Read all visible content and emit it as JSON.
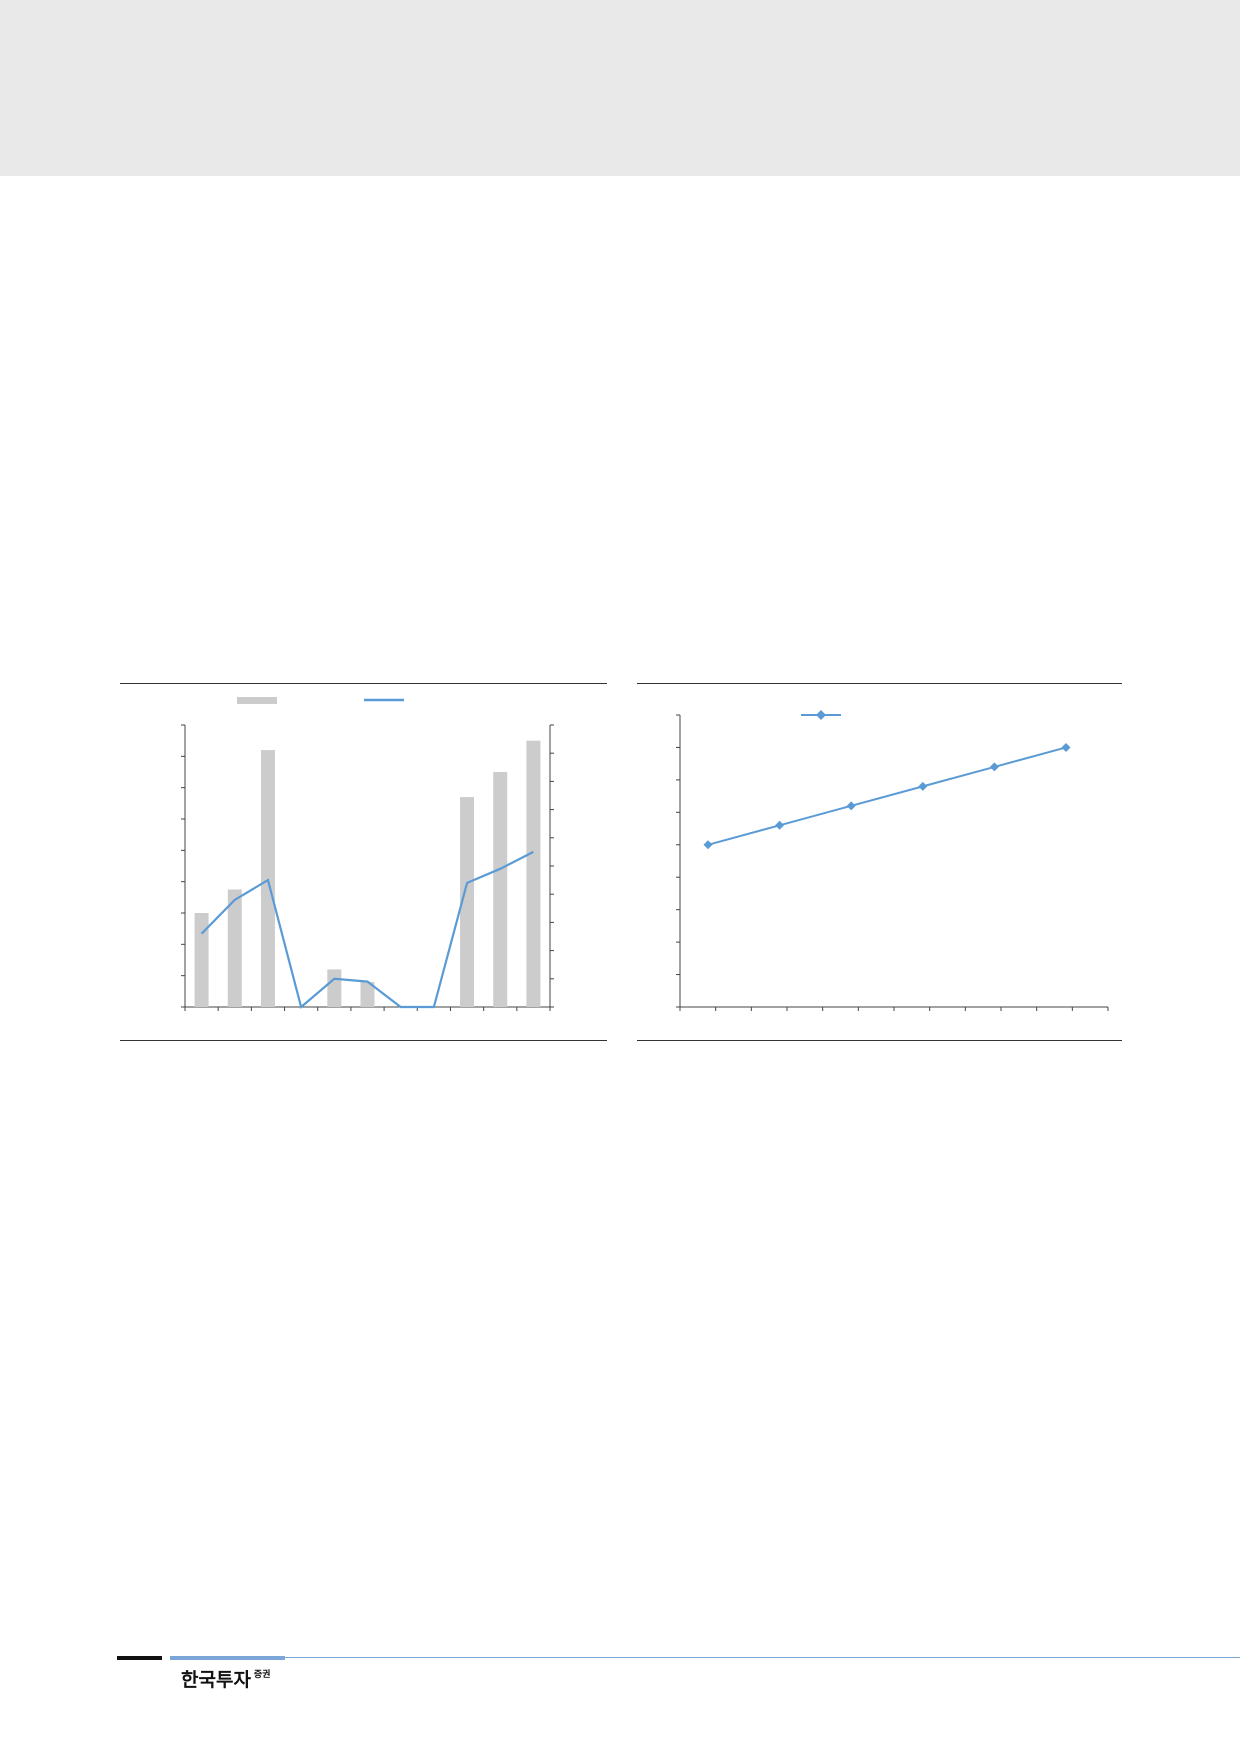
{
  "logo": {
    "main": "한국투자",
    "sub": "증권"
  },
  "colors": {
    "bar": "#cccccc",
    "line": "#5b9bd5",
    "axis": "#444444",
    "rule": "#333333",
    "header": "#e9e9e9",
    "footer_accent": "#7aa7d7"
  },
  "chart_data": [
    {
      "type": "bar",
      "title": "",
      "xlabel": "",
      "ylabel": "",
      "categories": [
        "",
        "",
        "",
        "",
        "",
        "",
        "",
        "",
        "",
        "",
        ""
      ],
      "series": [
        {
          "type": "bar",
          "axis": "left",
          "values": [
            3.0,
            3.75,
            8.2,
            0,
            1.2,
            0.8,
            0,
            0,
            6.7,
            7.5,
            8.5
          ]
        },
        {
          "type": "line",
          "axis": "right",
          "values": [
            2.6,
            3.8,
            4.5,
            0,
            1.0,
            0.9,
            0,
            0,
            4.4,
            4.9,
            5.5
          ]
        }
      ],
      "ylim": [
        0,
        9
      ],
      "y2lim": [
        0,
        10
      ],
      "grid": false,
      "legend": "top-center"
    },
    {
      "type": "line",
      "title": "",
      "xlabel": "",
      "ylabel": "",
      "categories": [
        "",
        "",
        "",
        "",
        "",
        ""
      ],
      "series": [
        {
          "marker": "diamond",
          "values": [
            5.0,
            5.6,
            6.2,
            6.8,
            7.4,
            8.0
          ]
        }
      ],
      "ylim": [
        0,
        9
      ],
      "grid": false,
      "legend": "top-left"
    }
  ]
}
